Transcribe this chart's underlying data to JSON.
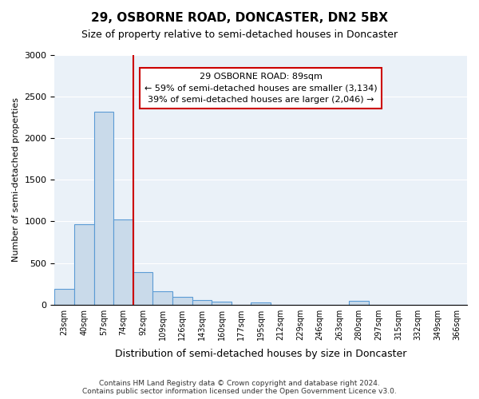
{
  "title": "29, OSBORNE ROAD, DONCASTER, DN2 5BX",
  "subtitle": "Size of property relative to semi-detached houses in Doncaster",
  "xlabel": "Distribution of semi-detached houses by size in Doncaster",
  "ylabel": "Number of semi-detached properties",
  "property_size": 89,
  "property_label": "29 OSBORNE ROAD: 89sqm",
  "pct_smaller": 59,
  "count_smaller": 3134,
  "pct_larger": 39,
  "count_larger": 2046,
  "bin_labels": [
    "23sqm",
    "40sqm",
    "57sqm",
    "74sqm",
    "92sqm",
    "109sqm",
    "126sqm",
    "143sqm",
    "160sqm",
    "177sqm",
    "195sqm",
    "212sqm",
    "229sqm",
    "246sqm",
    "263sqm",
    "280sqm",
    "297sqm",
    "315sqm",
    "332sqm",
    "349sqm",
    "366sqm"
  ],
  "bar_values": [
    190,
    970,
    2320,
    1020,
    390,
    155,
    95,
    50,
    35,
    0,
    30,
    0,
    0,
    0,
    0,
    40,
    0,
    0,
    0,
    0,
    0
  ],
  "bar_color": "#c9daea",
  "bar_edge_color": "#5b9bd5",
  "vline_color": "#cc0000",
  "vline_x": 4,
  "ylim": [
    0,
    3000
  ],
  "yticks": [
    0,
    500,
    1000,
    1500,
    2000,
    2500,
    3000
  ],
  "background_color": "#eaf1f8",
  "annotation_box_color": "#ffffff",
  "annotation_box_edge": "#cc0000",
  "footer": "Contains HM Land Registry data © Crown copyright and database right 2024.\nContains public sector information licensed under the Open Government Licence v3.0."
}
